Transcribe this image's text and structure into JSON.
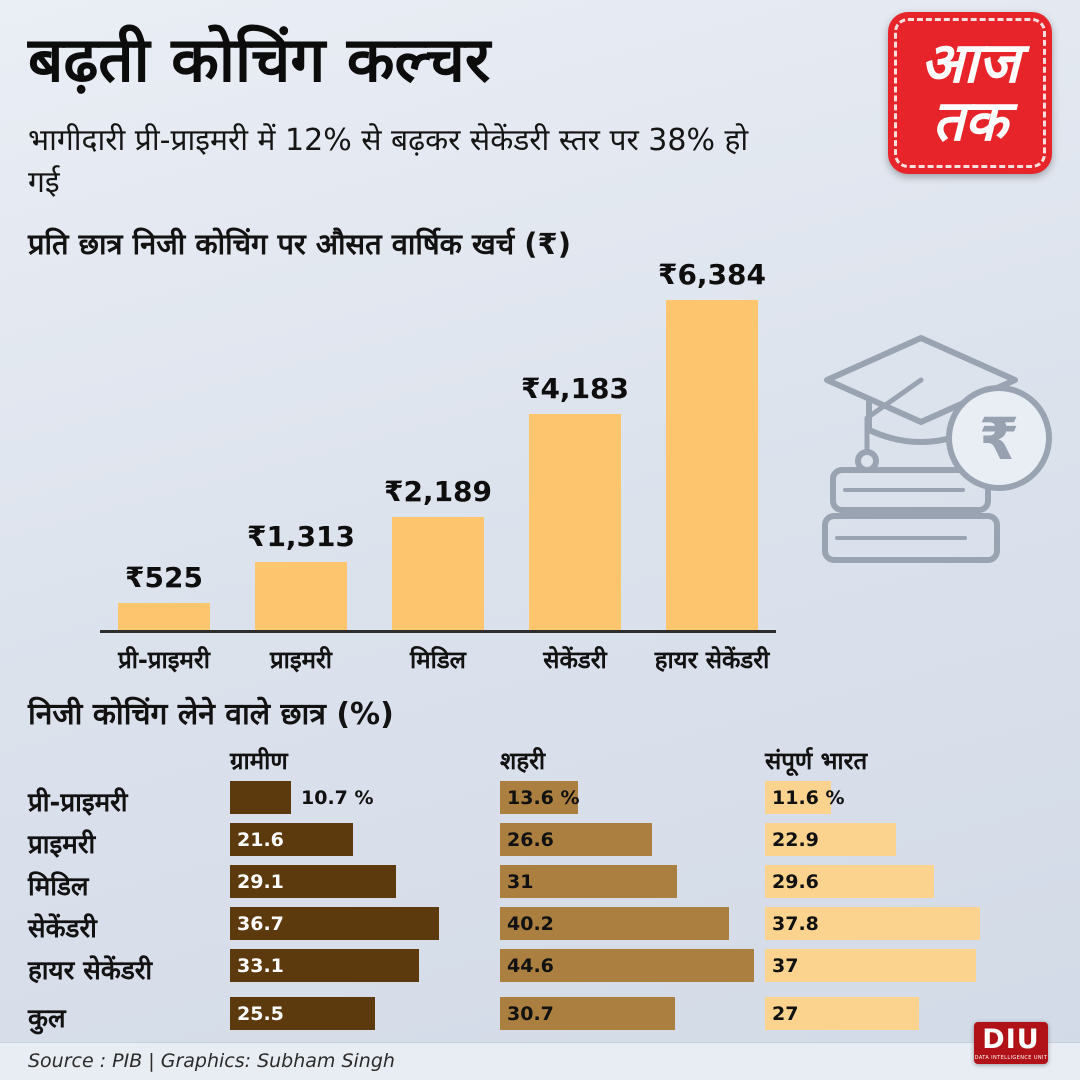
{
  "header": {
    "title": "बढ़ती कोचिंग कल्चर",
    "subtitle": "भागीदारी प्री-प्राइमरी में 12% से बढ़कर सेकेंडरी स्तर पर 38% हो गई",
    "logo": {
      "line1": "आज",
      "line2": "तक"
    }
  },
  "illustration": {
    "currency_symbol": "₹"
  },
  "chart_data": [
    {
      "type": "bar",
      "title": "प्रति छात्र निजी कोचिंग पर औसत वार्षिक खर्च (₹)",
      "categories": [
        "प्री-प्राइमरी",
        "प्राइमरी",
        "मिडिल",
        "सेकेंडरी",
        "हायर सेकेंडरी"
      ],
      "values": [
        525,
        1313,
        2189,
        4183,
        6384
      ],
      "value_labels": [
        "₹525",
        "₹1,313",
        "₹2,189",
        "₹4,183",
        "₹6,384"
      ],
      "bar_color": "#fcc56e",
      "ylim": [
        0,
        6384
      ],
      "grid": false,
      "legend": false
    },
    {
      "type": "bar",
      "orientation": "horizontal",
      "title": "निजी कोचिंग लेने वाले छात्र (%)",
      "categories": [
        "प्री-प्राइमरी",
        "प्राइमरी",
        "मिडिल",
        "सेकेंडरी",
        "हायर सेकेंडरी",
        "कुल"
      ],
      "series": [
        {
          "name": "ग्रामीण",
          "values": [
            10.7,
            21.6,
            29.1,
            36.7,
            33.1,
            25.5
          ],
          "color": "#5d3a0e"
        },
        {
          "name": "शहरी",
          "values": [
            13.6,
            26.6,
            31,
            40.2,
            44.6,
            30.7
          ],
          "color": "#aa7f40"
        },
        {
          "name": "संपूर्ण भारत",
          "values": [
            11.6,
            22.9,
            29.6,
            37.8,
            37,
            27
          ],
          "color": "#fbd38f"
        }
      ],
      "value_labels": [
        [
          "10.7 %",
          "21.6",
          "29.1",
          "36.7",
          "33.1",
          "25.5"
        ],
        [
          "13.6 %",
          "26.6",
          "31",
          "40.2",
          "44.6",
          "30.7"
        ],
        [
          "11.6 %",
          "22.9",
          "29.6",
          "37.8",
          "37",
          "27"
        ]
      ],
      "xlim": [
        0,
        47
      ],
      "legend_position": "column-headers"
    }
  ],
  "footer": {
    "source": "Source : PIB | Graphics: Subham Singh",
    "diu": {
      "label": "DIU",
      "sub": "DATA INTELLIGENCE UNIT"
    }
  }
}
